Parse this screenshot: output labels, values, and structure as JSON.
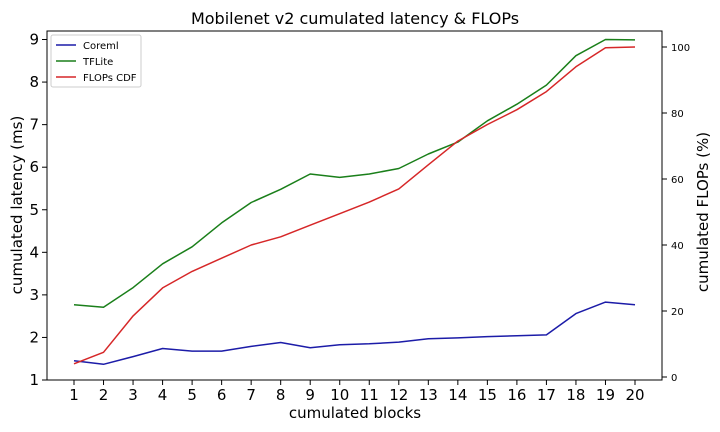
{
  "chart_data": {
    "type": "line",
    "title": "Mobilenet v2 cumulated latency & FLOPs",
    "xlabel": "cumulated blocks",
    "ylabel": "cumulated latency (ms)",
    "y2label": "cumulated FLOPs (%)",
    "x": [
      1,
      2,
      3,
      4,
      5,
      6,
      7,
      8,
      9,
      10,
      11,
      12,
      13,
      14,
      15,
      16,
      17,
      18,
      19,
      20
    ],
    "ylim": [
      1,
      9.2
    ],
    "y2lim": [
      0,
      100
    ],
    "yticks": [
      1,
      2,
      3,
      4,
      5,
      6,
      7,
      8,
      9
    ],
    "y2ticks": [
      0,
      20,
      40,
      60,
      80,
      100
    ],
    "grid": false,
    "legend_position": "top-left",
    "series": [
      {
        "name": "Coreml",
        "axis": "left",
        "color": "#1c1ca8",
        "values": [
          1.45,
          1.37,
          1.55,
          1.74,
          1.68,
          1.68,
          1.79,
          1.88,
          1.76,
          1.83,
          1.85,
          1.89,
          1.97,
          1.99,
          2.02,
          2.04,
          2.06,
          2.56,
          2.83,
          2.77
        ]
      },
      {
        "name": "TFLite",
        "axis": "left",
        "color": "#1a7f1a",
        "values": [
          2.77,
          2.71,
          3.17,
          3.73,
          4.13,
          4.69,
          5.17,
          5.48,
          5.84,
          5.76,
          5.84,
          5.97,
          6.31,
          6.59,
          7.09,
          7.48,
          7.93,
          8.62,
          9.0,
          8.99
        ]
      },
      {
        "name": "FLOPs CDF",
        "axis": "right",
        "color": "#d62728",
        "values": [
          4,
          7.5,
          18.5,
          27,
          32,
          36,
          40,
          42.5,
          46,
          49.5,
          53,
          57,
          64.3,
          71.5,
          76.5,
          81,
          86.5,
          94,
          99.8,
          100
        ]
      }
    ]
  }
}
